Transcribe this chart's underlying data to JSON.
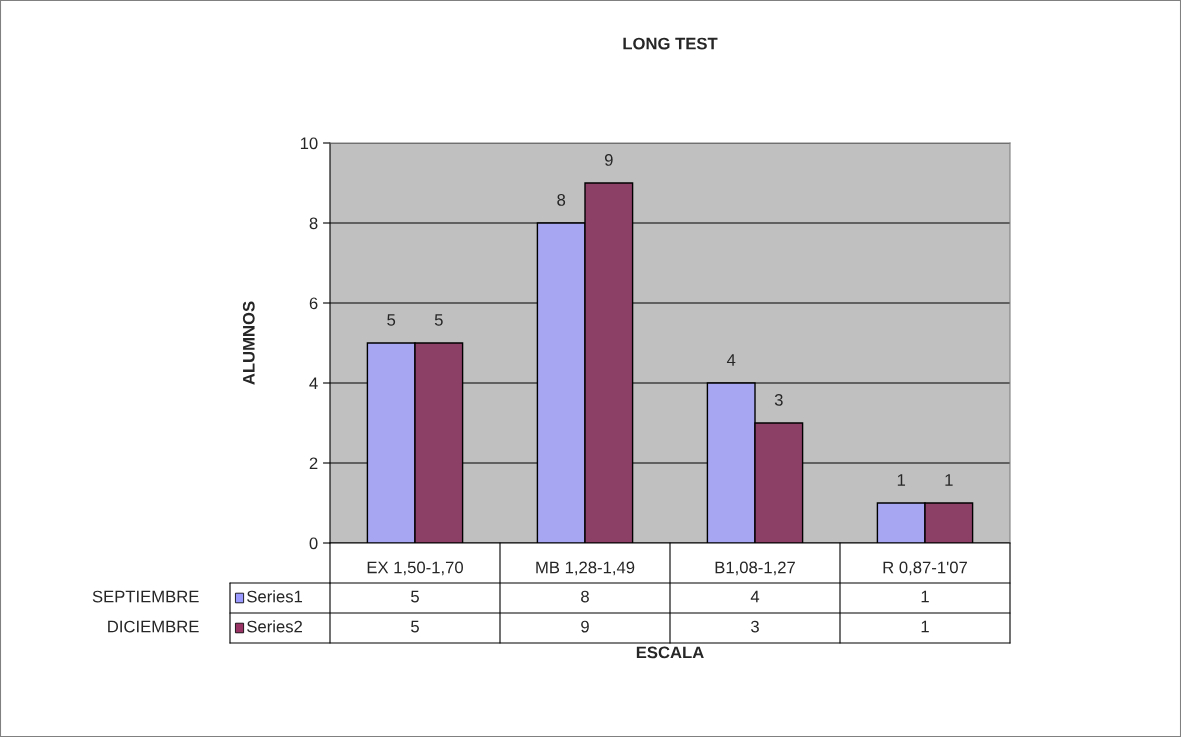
{
  "chart_data": {
    "type": "bar",
    "title": "LONG TEST",
    "xlabel": "ESCALA",
    "ylabel": "ALUMNOS",
    "categories": [
      "EX 1,50-1,70",
      "MB 1,28-1,49",
      "B1,08-1,27",
      "R 0,87-1'07"
    ],
    "series": [
      {
        "name": "Series1",
        "color": "#9999ff",
        "values": [
          5,
          8,
          4,
          1
        ]
      },
      {
        "name": "Series2",
        "color": "#993366",
        "values": [
          5,
          9,
          3,
          1
        ]
      }
    ],
    "ylim": [
      0,
      10
    ],
    "yticks": [
      0,
      2,
      4,
      6,
      8,
      10
    ],
    "grid": "y",
    "legend": "bottom",
    "data_labels": true,
    "annotations": [
      "SEPTIEMBRE",
      "DICIEMBRE",
      "5",
      "8",
      "4",
      "1",
      "5",
      "9",
      "3",
      "1"
    ]
  }
}
